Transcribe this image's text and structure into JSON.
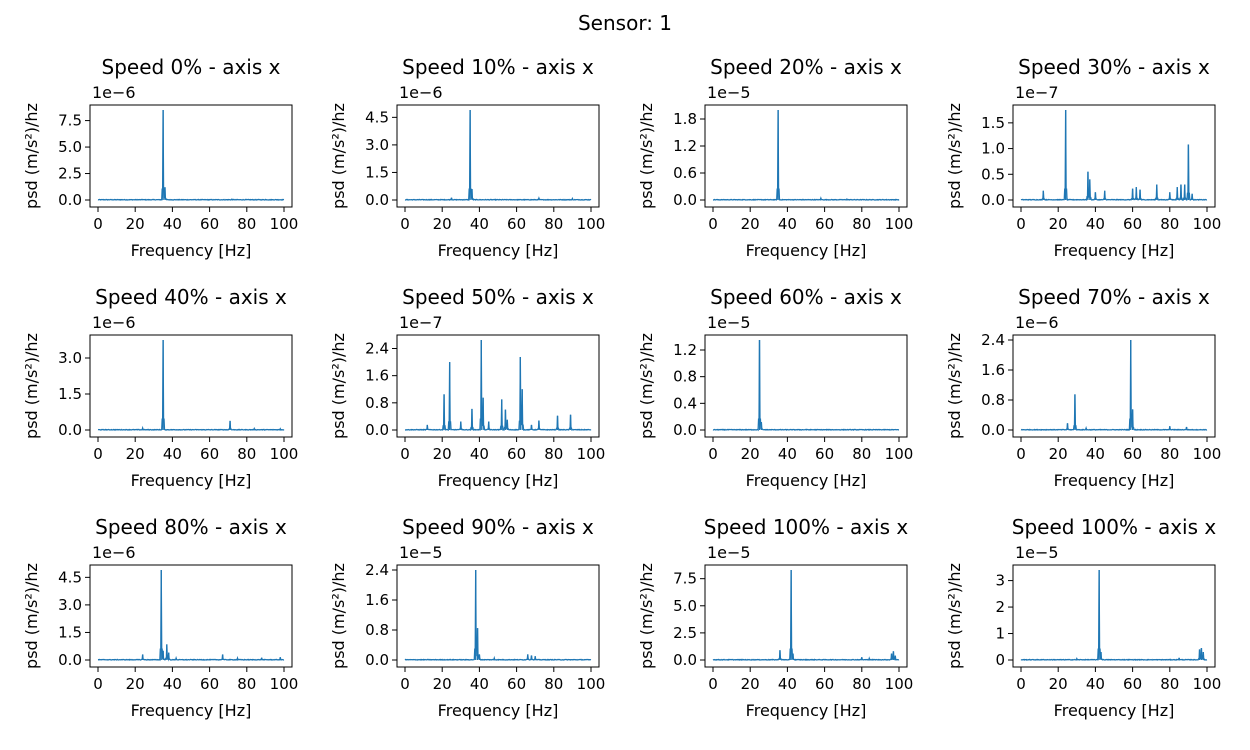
{
  "figure": {
    "suptitle": "Sensor: 1"
  },
  "chart_data": [
    {
      "type": "line",
      "title": "Speed 0% - axis x",
      "xlabel": "Frequency [Hz]",
      "ylabel": "psd (m/s²)/hz",
      "exponent_label": "1e−6",
      "xlim": [
        0,
        100
      ],
      "xticks": [
        "0",
        "20",
        "40",
        "60",
        "80",
        "100"
      ],
      "ylim": [
        0,
        8.5
      ],
      "yticks": [
        "0.0",
        "2.5",
        "5.0",
        "7.5"
      ],
      "color": "#1f77b4",
      "peaks": [
        [
          24,
          0.05
        ],
        [
          35,
          8.5
        ],
        [
          36,
          1.2
        ],
        [
          72,
          0.08
        ],
        [
          90,
          0.05
        ]
      ]
    },
    {
      "type": "line",
      "title": "Speed 10% - axis x",
      "xlabel": "Frequency [Hz]",
      "ylabel": "psd (m/s²)/hz",
      "exponent_label": "1e−6",
      "xlim": [
        0,
        100
      ],
      "xticks": [
        "0",
        "20",
        "40",
        "60",
        "80",
        "100"
      ],
      "ylim": [
        0,
        4.9
      ],
      "yticks": [
        "0.0",
        "1.5",
        "3.0",
        "4.5"
      ],
      "color": "#1f77b4",
      "peaks": [
        [
          25,
          0.12
        ],
        [
          35,
          4.9
        ],
        [
          36,
          0.6
        ],
        [
          72,
          0.1
        ],
        [
          90,
          0.08
        ]
      ]
    },
    {
      "type": "line",
      "title": "Speed 20% - axis x",
      "xlabel": "Frequency [Hz]",
      "ylabel": "psd (m/s²)/hz",
      "exponent_label": "1e−5",
      "xlim": [
        0,
        100
      ],
      "xticks": [
        "0",
        "20",
        "40",
        "60",
        "80",
        "100"
      ],
      "ylim": [
        0,
        2.0
      ],
      "yticks": [
        "0.0",
        "0.6",
        "1.2",
        "1.8"
      ],
      "color": "#1f77b4",
      "peaks": [
        [
          24,
          0.01
        ],
        [
          35,
          2.0
        ],
        [
          58,
          0.04
        ],
        [
          72,
          0.02
        ]
      ]
    },
    {
      "type": "line",
      "title": "Speed 30% - axis x",
      "xlabel": "Frequency [Hz]",
      "ylabel": "psd (m/s²)/hz",
      "exponent_label": "1e−7",
      "xlim": [
        0,
        100
      ],
      "xticks": [
        "0",
        "20",
        "40",
        "60",
        "80",
        "100"
      ],
      "ylim": [
        0,
        1.75
      ],
      "yticks": [
        "0.0",
        "0.5",
        "1.0",
        "1.5"
      ],
      "color": "#1f77b4",
      "peaks": [
        [
          12,
          0.18
        ],
        [
          24,
          1.75
        ],
        [
          36,
          0.55
        ],
        [
          37,
          0.4
        ],
        [
          40,
          0.15
        ],
        [
          45,
          0.18
        ],
        [
          60,
          0.22
        ],
        [
          62,
          0.25
        ],
        [
          64,
          0.2
        ],
        [
          73,
          0.3
        ],
        [
          80,
          0.15
        ],
        [
          84,
          0.25
        ],
        [
          86,
          0.3
        ],
        [
          88,
          0.3
        ],
        [
          90,
          1.08
        ],
        [
          92,
          0.12
        ]
      ]
    },
    {
      "type": "line",
      "title": "Speed 40% - axis x",
      "xlabel": "Frequency [Hz]",
      "ylabel": "psd (m/s²)/hz",
      "exponent_label": "1e−6",
      "xlim": [
        0,
        100
      ],
      "xticks": [
        "0",
        "20",
        "40",
        "60",
        "80",
        "100"
      ],
      "ylim": [
        0,
        3.75
      ],
      "yticks": [
        "0.0",
        "1.5",
        "3.0"
      ],
      "color": "#1f77b4",
      "peaks": [
        [
          24,
          0.08
        ],
        [
          35,
          3.75
        ],
        [
          71,
          0.38
        ],
        [
          84,
          0.06
        ],
        [
          98,
          0.05
        ]
      ]
    },
    {
      "type": "line",
      "title": "Speed 50% - axis x",
      "xlabel": "Frequency [Hz]",
      "ylabel": "psd (m/s²)/hz",
      "exponent_label": "1e−7",
      "xlim": [
        0,
        100
      ],
      "xticks": [
        "0",
        "20",
        "40",
        "60",
        "80",
        "100"
      ],
      "ylim": [
        0,
        2.65
      ],
      "yticks": [
        "0.0",
        "0.8",
        "1.6",
        "2.4"
      ],
      "color": "#1f77b4",
      "peaks": [
        [
          12,
          0.15
        ],
        [
          21,
          1.05
        ],
        [
          24,
          2.0
        ],
        [
          30,
          0.25
        ],
        [
          36,
          0.62
        ],
        [
          41,
          2.65
        ],
        [
          42,
          0.95
        ],
        [
          45,
          0.25
        ],
        [
          52,
          0.9
        ],
        [
          54,
          0.6
        ],
        [
          55,
          0.3
        ],
        [
          62,
          2.15
        ],
        [
          63,
          1.2
        ],
        [
          68,
          0.15
        ],
        [
          72,
          0.28
        ],
        [
          82,
          0.42
        ],
        [
          89,
          0.45
        ]
      ]
    },
    {
      "type": "line",
      "title": "Speed 60% - axis x",
      "xlabel": "Frequency [Hz]",
      "ylabel": "psd (m/s²)/hz",
      "exponent_label": "1e−5",
      "xlim": [
        0,
        100
      ],
      "xticks": [
        "0",
        "20",
        "40",
        "60",
        "80",
        "100"
      ],
      "ylim": [
        0,
        1.35
      ],
      "yticks": [
        "0.0",
        "0.4",
        "0.8",
        "1.2"
      ],
      "color": "#1f77b4",
      "peaks": [
        [
          25,
          1.35
        ],
        [
          26,
          0.12
        ],
        [
          50,
          0.01
        ]
      ]
    },
    {
      "type": "line",
      "title": "Speed 70% - axis x",
      "xlabel": "Frequency [Hz]",
      "ylabel": "psd (m/s²)/hz",
      "exponent_label": "1e−6",
      "xlim": [
        0,
        100
      ],
      "xticks": [
        "0",
        "20",
        "40",
        "60",
        "80",
        "100"
      ],
      "ylim": [
        0,
        2.4
      ],
      "yticks": [
        "0.0",
        "0.8",
        "1.6",
        "2.4"
      ],
      "color": "#1f77b4",
      "peaks": [
        [
          25,
          0.18
        ],
        [
          29,
          0.95
        ],
        [
          35,
          0.05
        ],
        [
          59,
          2.4
        ],
        [
          60,
          0.55
        ],
        [
          80,
          0.1
        ],
        [
          89,
          0.08
        ]
      ]
    },
    {
      "type": "line",
      "title": "Speed 80% - axis x",
      "xlabel": "Frequency [Hz]",
      "ylabel": "psd (m/s²)/hz",
      "exponent_label": "1e−6",
      "xlim": [
        0,
        100
      ],
      "xticks": [
        "0",
        "20",
        "40",
        "60",
        "80",
        "100"
      ],
      "ylim": [
        0,
        4.9
      ],
      "yticks": [
        "0.0",
        "1.5",
        "3.0",
        "4.5"
      ],
      "color": "#1f77b4",
      "peaks": [
        [
          24,
          0.3
        ],
        [
          34,
          4.9
        ],
        [
          35,
          0.5
        ],
        [
          37,
          0.85
        ],
        [
          38,
          0.4
        ],
        [
          42,
          0.1
        ],
        [
          67,
          0.3
        ],
        [
          75,
          0.1
        ],
        [
          88,
          0.12
        ],
        [
          98,
          0.15
        ]
      ]
    },
    {
      "type": "line",
      "title": "Speed 90% - axis x",
      "xlabel": "Frequency [Hz]",
      "ylabel": "psd (m/s²)/hz",
      "exponent_label": "1e−5",
      "xlim": [
        0,
        100
      ],
      "xticks": [
        "0",
        "20",
        "40",
        "60",
        "80",
        "100"
      ],
      "ylim": [
        0,
        2.4
      ],
      "yticks": [
        "0.0",
        "0.8",
        "1.6",
        "2.4"
      ],
      "color": "#1f77b4",
      "peaks": [
        [
          38,
          2.4
        ],
        [
          39,
          0.85
        ],
        [
          40,
          0.15
        ],
        [
          48,
          0.05
        ],
        [
          66,
          0.15
        ],
        [
          68,
          0.12
        ],
        [
          70,
          0.1
        ]
      ]
    },
    {
      "type": "line",
      "title": "Speed 100% - axis x",
      "xlabel": "Frequency [Hz]",
      "ylabel": "psd (m/s²)/hz",
      "exponent_label": "1e−5",
      "xlim": [
        0,
        100
      ],
      "xticks": [
        "0",
        "20",
        "40",
        "60",
        "80",
        "100"
      ],
      "ylim": [
        0,
        8.3
      ],
      "yticks": [
        "0.0",
        "2.5",
        "5.0",
        "7.5"
      ],
      "color": "#1f77b4",
      "peaks": [
        [
          36,
          0.9
        ],
        [
          42,
          8.3
        ],
        [
          43,
          0.6
        ],
        [
          80,
          0.25
        ],
        [
          84,
          0.15
        ],
        [
          96,
          0.6
        ],
        [
          97,
          0.8
        ],
        [
          98,
          0.4
        ]
      ]
    },
    {
      "type": "line",
      "title": "Speed 100% - axis x",
      "xlabel": "Frequency [Hz]",
      "ylabel": "psd (m/s²)/hz",
      "exponent_label": "1e−5",
      "xlim": [
        0,
        100
      ],
      "xticks": [
        "0",
        "20",
        "40",
        "60",
        "80",
        "100"
      ],
      "ylim": [
        0,
        3.4
      ],
      "yticks": [
        "0",
        "1",
        "2",
        "3"
      ],
      "color": "#1f77b4",
      "peaks": [
        [
          30,
          0.05
        ],
        [
          42,
          3.4
        ],
        [
          43,
          0.3
        ],
        [
          85,
          0.08
        ],
        [
          96,
          0.4
        ],
        [
          97,
          0.45
        ],
        [
          98,
          0.3
        ]
      ]
    }
  ]
}
